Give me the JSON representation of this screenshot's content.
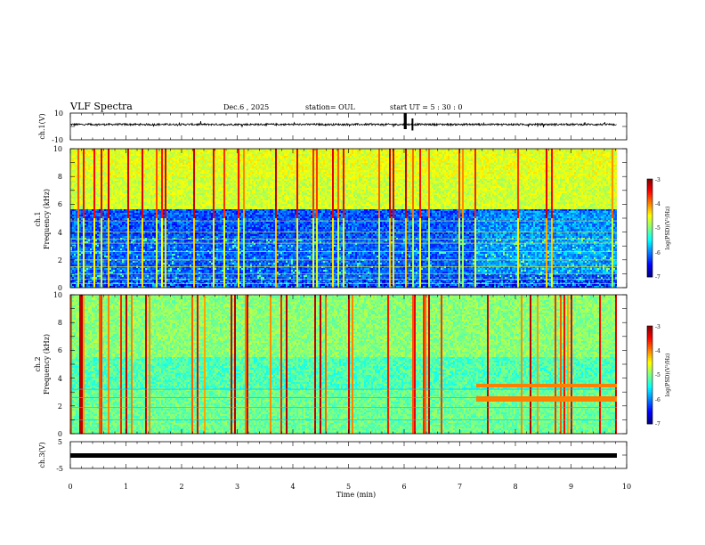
{
  "header": {
    "title": "VLF Spectra",
    "date": "Dec.6 , 2025",
    "station": "station= OUL",
    "start": "start UT =  5 : 30 : 0"
  },
  "chart_data": [
    {
      "type": "line",
      "name": "ch1-waveform",
      "ylabel": "ch.1(V)",
      "ylim": [
        -10,
        10
      ],
      "ytick_labels": [
        "10",
        "-10"
      ],
      "xlim": [
        0,
        10
      ],
      "baseline": 1.5,
      "noise_amplitude": 0.7,
      "bursts": [
        {
          "t": 6.01,
          "min": -2,
          "max": 10
        },
        {
          "t": 6.03,
          "min": -2,
          "max": 10
        },
        {
          "t": 6.15,
          "min": -3,
          "max": 6
        }
      ]
    },
    {
      "type": "heatmap",
      "name": "ch1-spectrogram",
      "ylabel_top": "ch.1",
      "ylabel": "Frequency (kHz)",
      "xlim": [
        0,
        9.82
      ],
      "ylim": [
        0,
        10
      ],
      "ytick_labels": [
        "0",
        "2",
        "4",
        "6",
        "8",
        "10"
      ],
      "colorbar": {
        "range": [
          -7,
          -3
        ],
        "tick_labels": [
          "-3",
          "-4",
          "-5",
          "-6",
          "-7"
        ],
        "label": "log(PSD)(V²/Hz)"
      },
      "features": "strong broadband sferics up to 10 kHz; intense band 5.5-10 kHz; low power 3.5-5.5 kHz; narrowband lines below 3.5 kHz"
    },
    {
      "type": "heatmap",
      "name": "ch2-spectrogram",
      "ylabel_top": "ch.2",
      "ylabel": "Frequency (kHz)",
      "xlim": [
        0,
        9.82
      ],
      "ylim": [
        0,
        10
      ],
      "ytick_labels": [
        "0",
        "2",
        "4",
        "6",
        "8",
        "10"
      ],
      "colorbar": {
        "range": [
          -7,
          -3
        ],
        "tick_labels": [
          "-3",
          "-4",
          "-5",
          "-6",
          "-7"
        ],
        "label": "log(PSD)(V²/Hz)"
      },
      "features": "green-yellow background, red sferics, horizontal bands near 2.5 and 3.5 kHz after 7.3 min"
    },
    {
      "type": "line",
      "name": "ch3-waveform",
      "ylabel": "ch.3(V)",
      "ylim": [
        -5,
        5
      ],
      "ytick_labels": [
        "5",
        "-5"
      ],
      "xlim": [
        0,
        10
      ],
      "baseline": -1.5,
      "xlabel": "Time (min)",
      "xtick_labels": [
        "0",
        "1",
        "2",
        "3",
        "4",
        "5",
        "6",
        "7",
        "8",
        "9",
        "10"
      ]
    }
  ]
}
